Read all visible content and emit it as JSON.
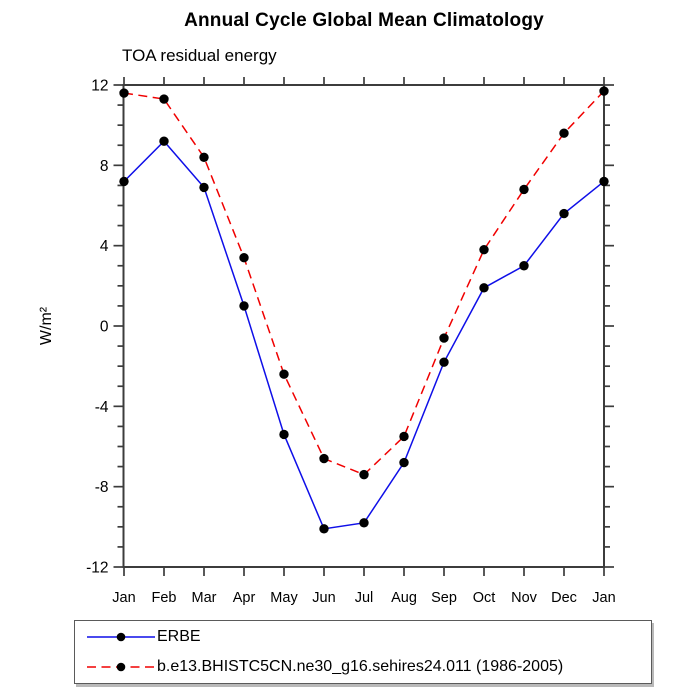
{
  "chart_data": {
    "type": "line",
    "title": "Annual Cycle Global Mean Climatology",
    "subtitle": "TOA residual energy",
    "ylabel": "W/m²",
    "xlabel": "",
    "categories": [
      "Jan",
      "Feb",
      "Mar",
      "Apr",
      "May",
      "Jun",
      "Jul",
      "Aug",
      "Sep",
      "Oct",
      "Nov",
      "Dec",
      "Jan"
    ],
    "ylim": [
      -12,
      12
    ],
    "yticks_major": [
      12,
      8,
      4,
      0,
      -4,
      -8,
      -12
    ],
    "ytick_minor_step": 1,
    "grid": false,
    "legend_position": "bottom-left-box",
    "axis_color": "#3c3c3c",
    "marker_color": "#000000",
    "series": [
      {
        "name": "ERBE",
        "color": "#0f0fe8",
        "line_style": "solid",
        "marker": "filled-circle",
        "values": [
          7.2,
          9.2,
          6.9,
          1.0,
          -5.4,
          -10.1,
          -9.8,
          -6.8,
          -1.8,
          1.9,
          3.0,
          5.6,
          7.2
        ]
      },
      {
        "name": "b.e13.BHISTC5CN.ne30_g16.sehires24.011 (1986-2005)",
        "color": "#f00000",
        "line_style": "dashed",
        "marker": "filled-circle",
        "values": [
          11.6,
          11.3,
          8.4,
          3.4,
          -2.4,
          -6.6,
          -7.4,
          -5.5,
          -0.6,
          3.8,
          6.8,
          9.6,
          11.7
        ]
      }
    ]
  }
}
